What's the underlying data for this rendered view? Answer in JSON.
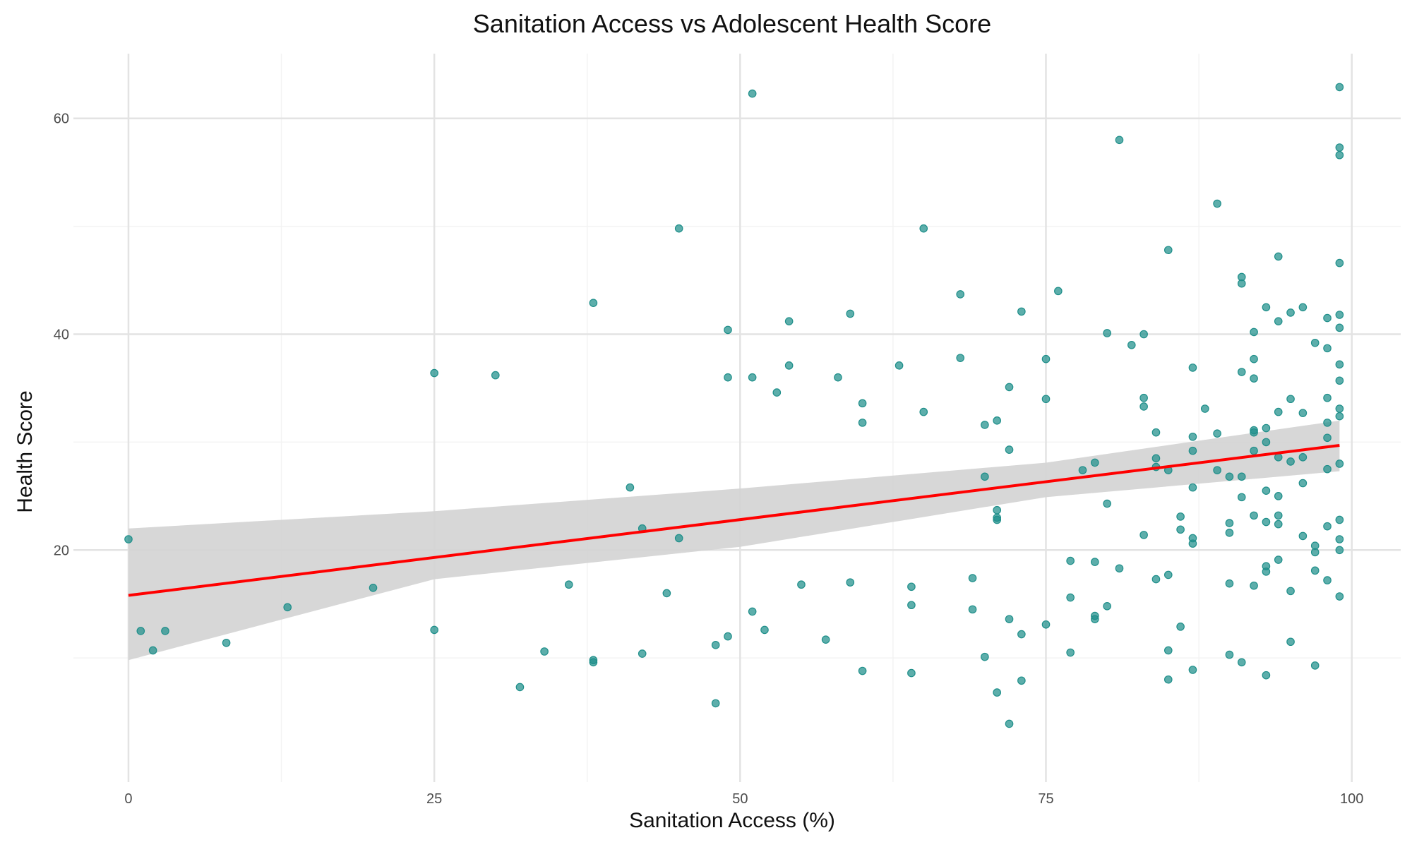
{
  "chart_data": {
    "type": "scatter",
    "title": "Sanitation Access vs Adolescent Health Score",
    "xlabel": "Sanitation Access (%)",
    "ylabel": "Health Score",
    "xlim": [
      -4.5,
      104
    ],
    "ylim": [
      -1.5,
      66
    ],
    "x_ticks": [
      0,
      25,
      50,
      75,
      100
    ],
    "y_ticks": [
      20,
      40,
      60
    ],
    "x_tick_labels": [
      "0",
      "25",
      "50",
      "75",
      "100"
    ],
    "y_tick_labels": [
      "20",
      "40",
      "60"
    ],
    "grid": true,
    "legend": "none",
    "colors": {
      "points": "#1f8f8a",
      "fit_line": "#ff0000",
      "confidence_band": "#d4d4d4",
      "grid_major": "#e3e3e3",
      "grid_minor": "#f3f3f3",
      "background": "#ffffff"
    },
    "fit_line": {
      "x": [
        0,
        99
      ],
      "y": [
        15.8,
        29.7
      ]
    },
    "confidence_band": {
      "x": [
        0,
        25,
        50,
        75,
        99
      ],
      "lower": [
        9.8,
        17.3,
        20.3,
        24.9,
        27.3
      ],
      "upper": [
        22.0,
        23.6,
        25.7,
        28.1,
        32.0
      ]
    },
    "points": [
      [
        0,
        21.0
      ],
      [
        1,
        12.5
      ],
      [
        2,
        10.7
      ],
      [
        3,
        12.5
      ],
      [
        8,
        11.4
      ],
      [
        13,
        14.7
      ],
      [
        20,
        16.5
      ],
      [
        25,
        36.4
      ],
      [
        25,
        12.6
      ],
      [
        30,
        36.2
      ],
      [
        32,
        7.3
      ],
      [
        34,
        10.6
      ],
      [
        36,
        16.8
      ],
      [
        38,
        42.9
      ],
      [
        38,
        9.8
      ],
      [
        38,
        9.6
      ],
      [
        41,
        25.8
      ],
      [
        42,
        22.0
      ],
      [
        42,
        10.4
      ],
      [
        44,
        16.0
      ],
      [
        45,
        49.8
      ],
      [
        45,
        21.1
      ],
      [
        48,
        11.2
      ],
      [
        48,
        5.8
      ],
      [
        49,
        40.4
      ],
      [
        49,
        36.0
      ],
      [
        49,
        12.0
      ],
      [
        51,
        62.3
      ],
      [
        51,
        36.0
      ],
      [
        51,
        14.3
      ],
      [
        52,
        12.6
      ],
      [
        53,
        34.6
      ],
      [
        54,
        41.2
      ],
      [
        54,
        37.1
      ],
      [
        55,
        16.8
      ],
      [
        57,
        11.7
      ],
      [
        58,
        36.0
      ],
      [
        59,
        41.9
      ],
      [
        59,
        17.0
      ],
      [
        60,
        33.6
      ],
      [
        60,
        31.8
      ],
      [
        60,
        8.8
      ],
      [
        63,
        37.1
      ],
      [
        64,
        16.6
      ],
      [
        64,
        14.9
      ],
      [
        64,
        8.6
      ],
      [
        65,
        49.8
      ],
      [
        65,
        32.8
      ],
      [
        68,
        43.7
      ],
      [
        68,
        37.8
      ],
      [
        69,
        17.4
      ],
      [
        69,
        14.5
      ],
      [
        70,
        31.6
      ],
      [
        70,
        26.8
      ],
      [
        70,
        10.1
      ],
      [
        71,
        32.0
      ],
      [
        71,
        23.7
      ],
      [
        71,
        23.0
      ],
      [
        71,
        22.8
      ],
      [
        71,
        6.8
      ],
      [
        72,
        35.1
      ],
      [
        72,
        29.3
      ],
      [
        72,
        13.6
      ],
      [
        72,
        3.9
      ],
      [
        73,
        42.1
      ],
      [
        73,
        12.2
      ],
      [
        73,
        7.9
      ],
      [
        75,
        37.7
      ],
      [
        75,
        34.0
      ],
      [
        75,
        13.1
      ],
      [
        76,
        44.0
      ],
      [
        77,
        19.0
      ],
      [
        77,
        15.6
      ],
      [
        77,
        10.5
      ],
      [
        78,
        27.4
      ],
      [
        79,
        28.1
      ],
      [
        79,
        18.9
      ],
      [
        79,
        13.9
      ],
      [
        79,
        13.6
      ],
      [
        80,
        40.1
      ],
      [
        80,
        24.3
      ],
      [
        80,
        14.8
      ],
      [
        81,
        58.0
      ],
      [
        81,
        18.3
      ],
      [
        82,
        39.0
      ],
      [
        83,
        40.0
      ],
      [
        83,
        34.1
      ],
      [
        83,
        33.3
      ],
      [
        83,
        21.4
      ],
      [
        84,
        30.9
      ],
      [
        84,
        28.5
      ],
      [
        84,
        27.7
      ],
      [
        84,
        17.3
      ],
      [
        85,
        47.8
      ],
      [
        85,
        27.4
      ],
      [
        85,
        17.7
      ],
      [
        85,
        10.7
      ],
      [
        85,
        8.0
      ],
      [
        86,
        23.1
      ],
      [
        86,
        21.9
      ],
      [
        86,
        12.9
      ],
      [
        87,
        36.9
      ],
      [
        87,
        30.5
      ],
      [
        87,
        29.2
      ],
      [
        87,
        25.8
      ],
      [
        87,
        21.1
      ],
      [
        87,
        20.6
      ],
      [
        87,
        8.9
      ],
      [
        88,
        33.1
      ],
      [
        89,
        52.1
      ],
      [
        89,
        30.8
      ],
      [
        89,
        27.4
      ],
      [
        90,
        26.8
      ],
      [
        90,
        22.5
      ],
      [
        90,
        21.6
      ],
      [
        90,
        16.9
      ],
      [
        90,
        10.3
      ],
      [
        91,
        45.3
      ],
      [
        91,
        44.7
      ],
      [
        91,
        36.5
      ],
      [
        91,
        26.8
      ],
      [
        91,
        24.9
      ],
      [
        91,
        9.6
      ],
      [
        92,
        40.2
      ],
      [
        92,
        37.7
      ],
      [
        92,
        35.9
      ],
      [
        92,
        31.1
      ],
      [
        92,
        30.9
      ],
      [
        92,
        29.2
      ],
      [
        92,
        23.2
      ],
      [
        92,
        16.7
      ],
      [
        93,
        42.5
      ],
      [
        93,
        31.3
      ],
      [
        93,
        30.0
      ],
      [
        93,
        25.5
      ],
      [
        93,
        22.6
      ],
      [
        93,
        18.5
      ],
      [
        93,
        18.0
      ],
      [
        93,
        8.4
      ],
      [
        94,
        47.2
      ],
      [
        94,
        41.2
      ],
      [
        94,
        32.8
      ],
      [
        94,
        28.6
      ],
      [
        94,
        25.0
      ],
      [
        94,
        23.2
      ],
      [
        94,
        22.4
      ],
      [
        94,
        19.1
      ],
      [
        95,
        42.0
      ],
      [
        95,
        34.0
      ],
      [
        95,
        28.2
      ],
      [
        95,
        16.2
      ],
      [
        95,
        11.5
      ],
      [
        96,
        42.5
      ],
      [
        96,
        32.7
      ],
      [
        96,
        28.6
      ],
      [
        96,
        26.2
      ],
      [
        96,
        21.3
      ],
      [
        97,
        39.2
      ],
      [
        97,
        20.4
      ],
      [
        97,
        19.8
      ],
      [
        97,
        18.1
      ],
      [
        97,
        9.3
      ],
      [
        98,
        41.5
      ],
      [
        98,
        38.7
      ],
      [
        98,
        34.1
      ],
      [
        98,
        31.8
      ],
      [
        98,
        30.4
      ],
      [
        98,
        27.5
      ],
      [
        98,
        22.2
      ],
      [
        98,
        17.2
      ],
      [
        99,
        62.9
      ],
      [
        99,
        57.3
      ],
      [
        99,
        56.6
      ],
      [
        99,
        46.6
      ],
      [
        99,
        41.8
      ],
      [
        99,
        40.6
      ],
      [
        99,
        37.2
      ],
      [
        99,
        35.7
      ],
      [
        99,
        33.1
      ],
      [
        99,
        32.4
      ],
      [
        99,
        28.0
      ],
      [
        99,
        22.8
      ],
      [
        99,
        21.0
      ],
      [
        99,
        20.0
      ],
      [
        99,
        15.7
      ]
    ]
  }
}
